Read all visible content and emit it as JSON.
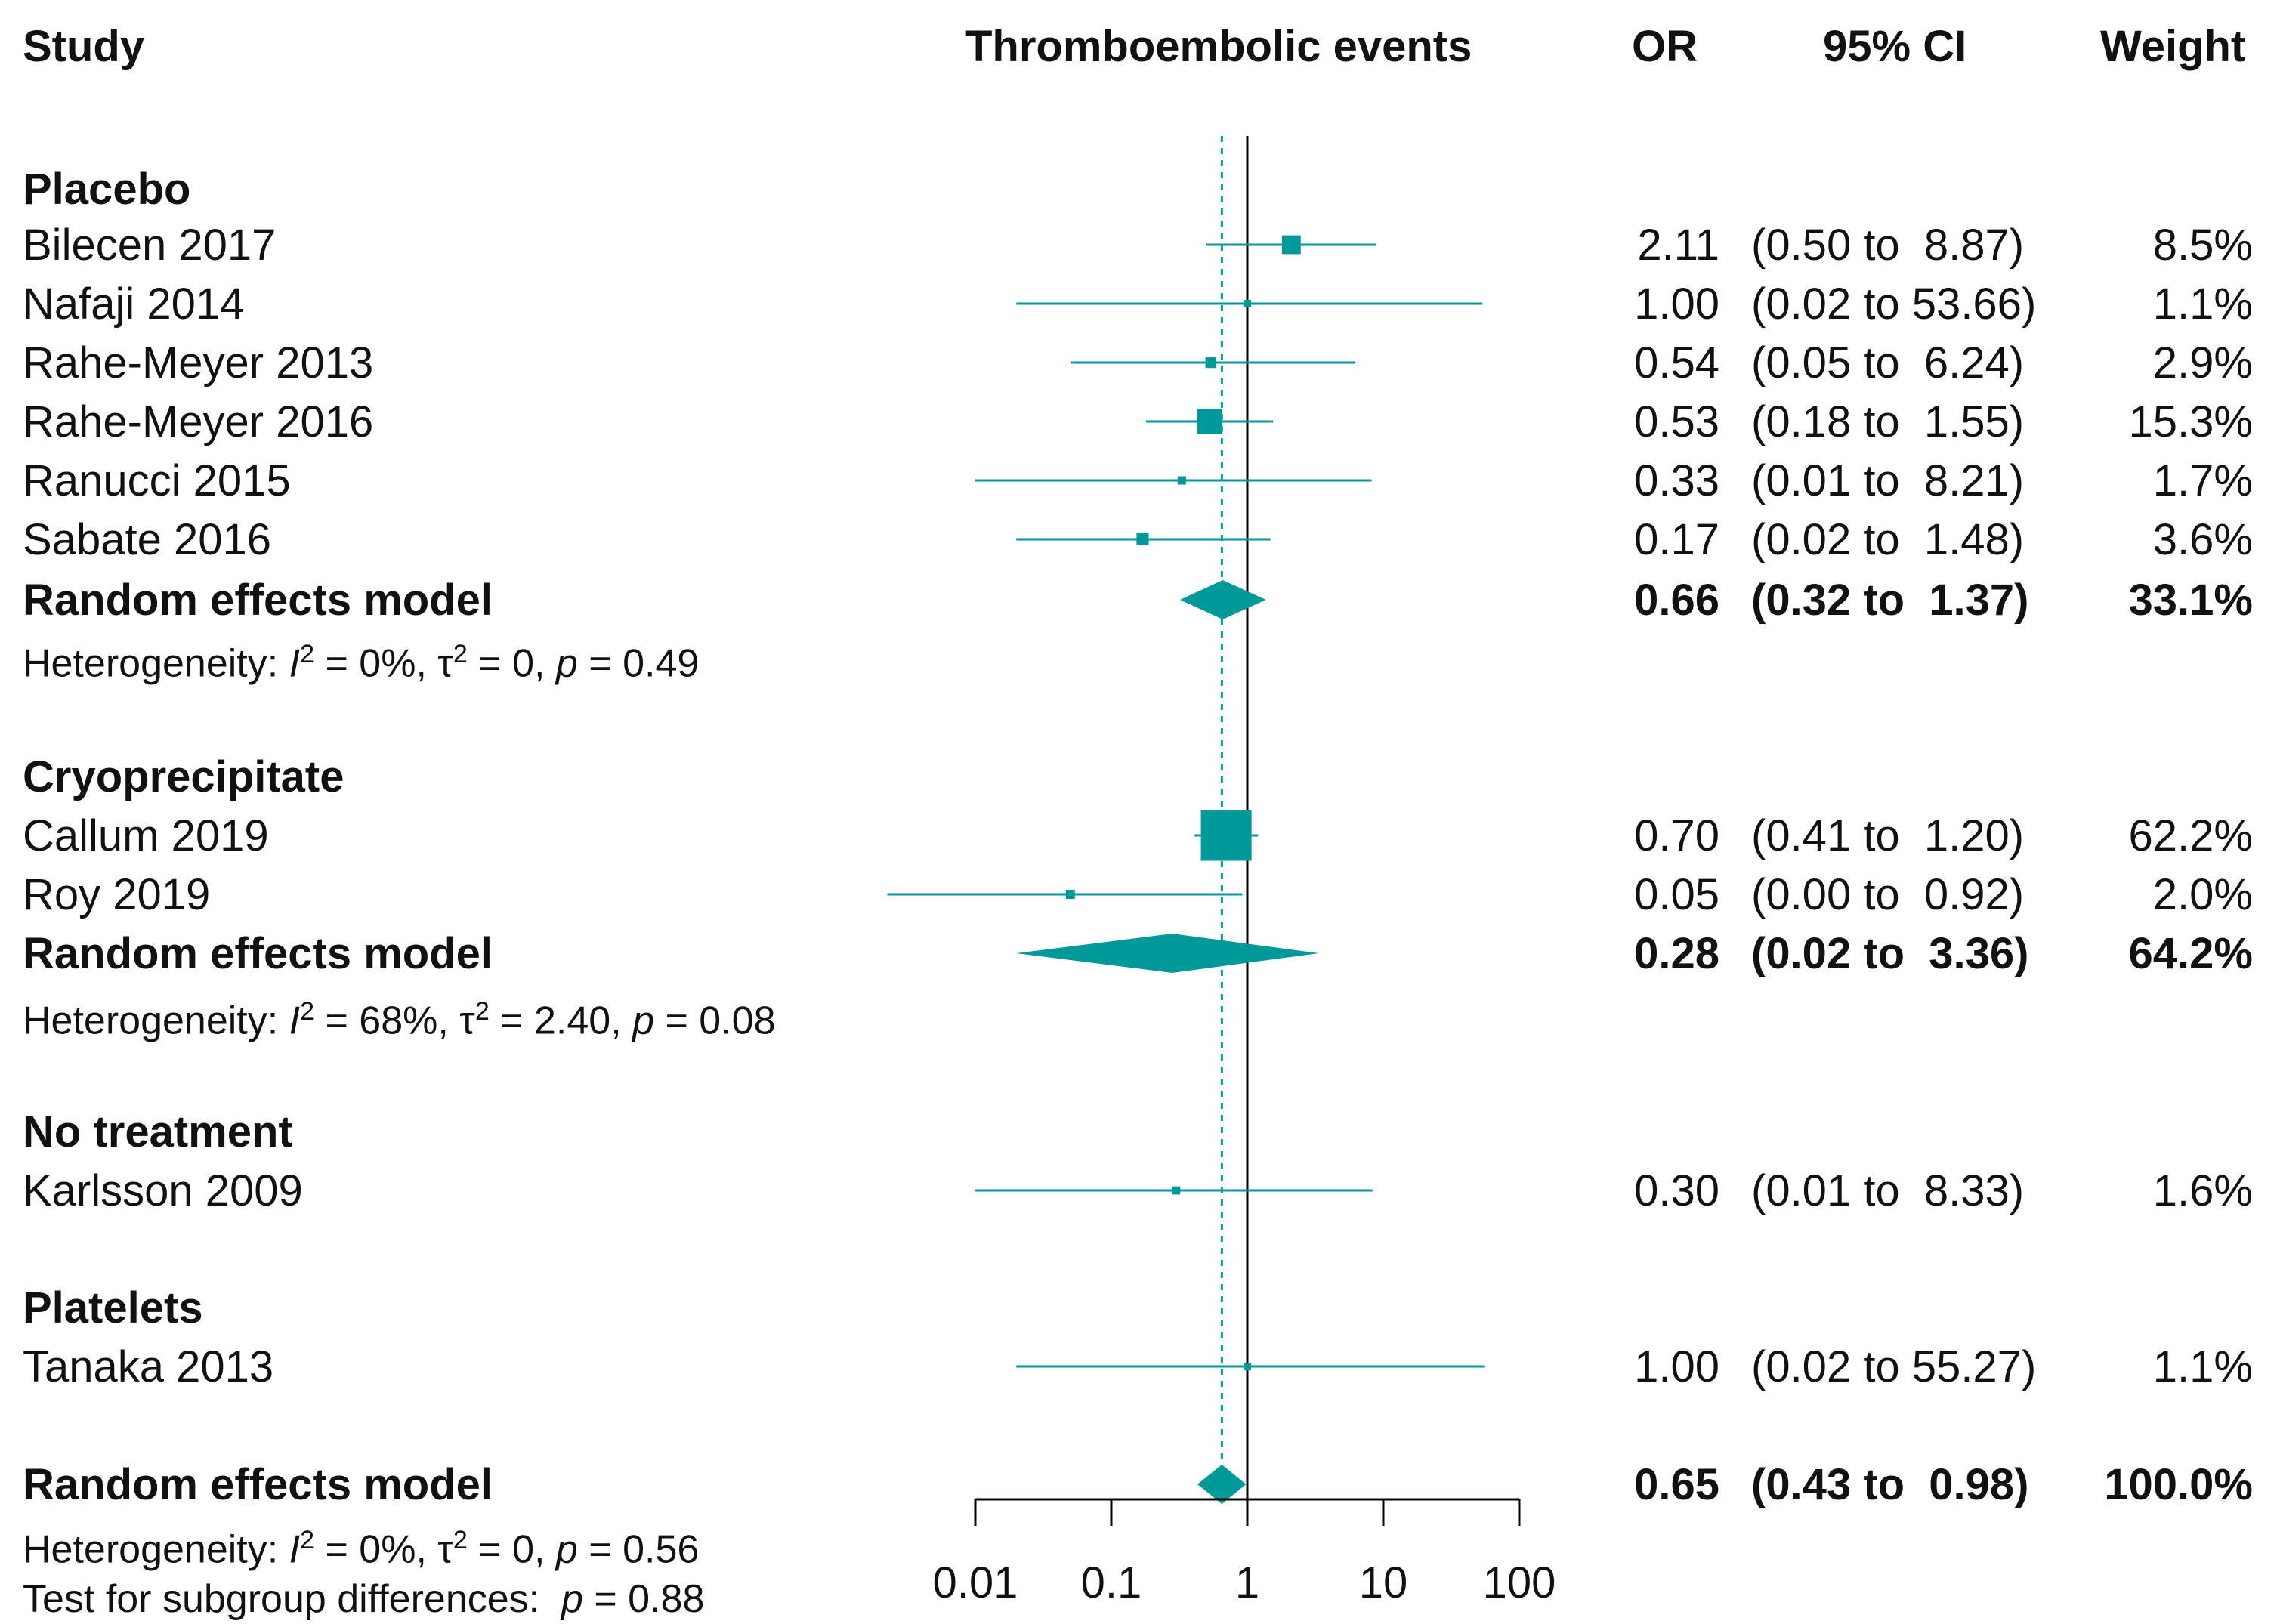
{
  "headers": {
    "study": "Study",
    "plot": "Thromboembolic events",
    "or": "OR",
    "ci": "95% CI",
    "weight": "Weight"
  },
  "rows": [
    {
      "kind": "group",
      "label": "Placebo"
    },
    {
      "kind": "study",
      "label": "Bilecen 2017",
      "or": "2.11",
      "ci": "(0.50 to  8.87)",
      "weight": "8.5%"
    },
    {
      "kind": "study",
      "label": "Nafaji 2014",
      "or": "1.00",
      "ci": "(0.02 to 53.66)",
      "weight": "1.1%"
    },
    {
      "kind": "study",
      "label": "Rahe-Meyer 2013",
      "or": "0.54",
      "ci": "(0.05 to  6.24)",
      "weight": "2.9%"
    },
    {
      "kind": "study",
      "label": "Rahe-Meyer 2016",
      "or": "0.53",
      "ci": "(0.18 to  1.55)",
      "weight": "15.3%"
    },
    {
      "kind": "study",
      "label": "Ranucci 2015",
      "or": "0.33",
      "ci": "(0.01 to  8.21)",
      "weight": "1.7%"
    },
    {
      "kind": "study",
      "label": "Sabate 2016",
      "or": "0.17",
      "ci": "(0.02 to  1.48)",
      "weight": "3.6%"
    },
    {
      "kind": "model",
      "label": "Random effects model",
      "or": "0.66",
      "ci": "(0.32 to  1.37)",
      "weight": "33.1%"
    },
    {
      "kind": "het",
      "label": "Heterogeneity: I² = 0%, τ² = 0, p = 0.49"
    },
    {
      "kind": "group",
      "label": "Cryoprecipitate"
    },
    {
      "kind": "study",
      "label": "Callum 2019",
      "or": "0.70",
      "ci": "(0.41 to  1.20)",
      "weight": "62.2%"
    },
    {
      "kind": "study",
      "label": "Roy 2019",
      "or": "0.05",
      "ci": "(0.00 to  0.92)",
      "weight": "2.0%"
    },
    {
      "kind": "model",
      "label": "Random effects model",
      "or": "0.28",
      "ci": "(0.02 to  3.36)",
      "weight": "64.2%"
    },
    {
      "kind": "het",
      "label": "Heterogeneity: I² = 68%, τ² = 2.40, p = 0.08"
    },
    {
      "kind": "group",
      "label": "No treatment"
    },
    {
      "kind": "study",
      "label": "Karlsson 2009",
      "or": "0.30",
      "ci": "(0.01 to  8.33)",
      "weight": "1.6%"
    },
    {
      "kind": "group",
      "label": "Platelets"
    },
    {
      "kind": "study",
      "label": "Tanaka 2013",
      "or": "1.00",
      "ci": "(0.02 to 55.27)",
      "weight": "1.1%"
    },
    {
      "kind": "model",
      "label": "Random effects model",
      "or": "0.65",
      "ci": "(0.43 to  0.98)",
      "weight": "100.0%"
    },
    {
      "kind": "het",
      "label": "Heterogeneity: I² = 0%, τ² = 0, p = 0.56"
    },
    {
      "kind": "het",
      "label": "Test for subgroup differences:  p = 0.88"
    }
  ],
  "colors": {
    "accent": "#009999",
    "line": "#000000"
  },
  "chart_data": {
    "type": "forest",
    "scale": "log",
    "x_ticks": [
      "0.01",
      "0.1",
      "1",
      "10",
      "100"
    ],
    "reference_line": 1,
    "overall_estimate_line": 0.65,
    "studies": [
      {
        "group": "Placebo",
        "name": "Bilecen 2017",
        "or": 2.11,
        "lo": 0.5,
        "hi": 8.87,
        "weight": 8.5
      },
      {
        "group": "Placebo",
        "name": "Nafaji 2014",
        "or": 1.0,
        "lo": 0.02,
        "hi": 53.66,
        "weight": 1.1
      },
      {
        "group": "Placebo",
        "name": "Rahe-Meyer 2013",
        "or": 0.54,
        "lo": 0.05,
        "hi": 6.24,
        "weight": 2.9
      },
      {
        "group": "Placebo",
        "name": "Rahe-Meyer 2016",
        "or": 0.53,
        "lo": 0.18,
        "hi": 1.55,
        "weight": 15.3
      },
      {
        "group": "Placebo",
        "name": "Ranucci 2015",
        "or": 0.33,
        "lo": 0.01,
        "hi": 8.21,
        "weight": 1.7
      },
      {
        "group": "Placebo",
        "name": "Sabate 2016",
        "or": 0.17,
        "lo": 0.02,
        "hi": 1.48,
        "weight": 3.6
      },
      {
        "group": "Cryoprecipitate",
        "name": "Callum 2019",
        "or": 0.7,
        "lo": 0.41,
        "hi": 1.2,
        "weight": 62.2
      },
      {
        "group": "Cryoprecipitate",
        "name": "Roy 2019",
        "or": 0.05,
        "lo": 0.0,
        "hi": 0.92,
        "weight": 2.0
      },
      {
        "group": "No treatment",
        "name": "Karlsson 2009",
        "or": 0.3,
        "lo": 0.01,
        "hi": 8.33,
        "weight": 1.6
      },
      {
        "group": "Platelets",
        "name": "Tanaka 2013",
        "or": 1.0,
        "lo": 0.02,
        "hi": 55.27,
        "weight": 1.1
      }
    ],
    "pooled": [
      {
        "group": "Placebo",
        "or": 0.66,
        "lo": 0.32,
        "hi": 1.37,
        "weight": 33.1
      },
      {
        "group": "Cryoprecipitate",
        "or": 0.28,
        "lo": 0.02,
        "hi": 3.36,
        "weight": 64.2
      },
      {
        "group": "Overall",
        "or": 0.65,
        "lo": 0.43,
        "hi": 0.98,
        "weight": 100.0
      }
    ]
  }
}
